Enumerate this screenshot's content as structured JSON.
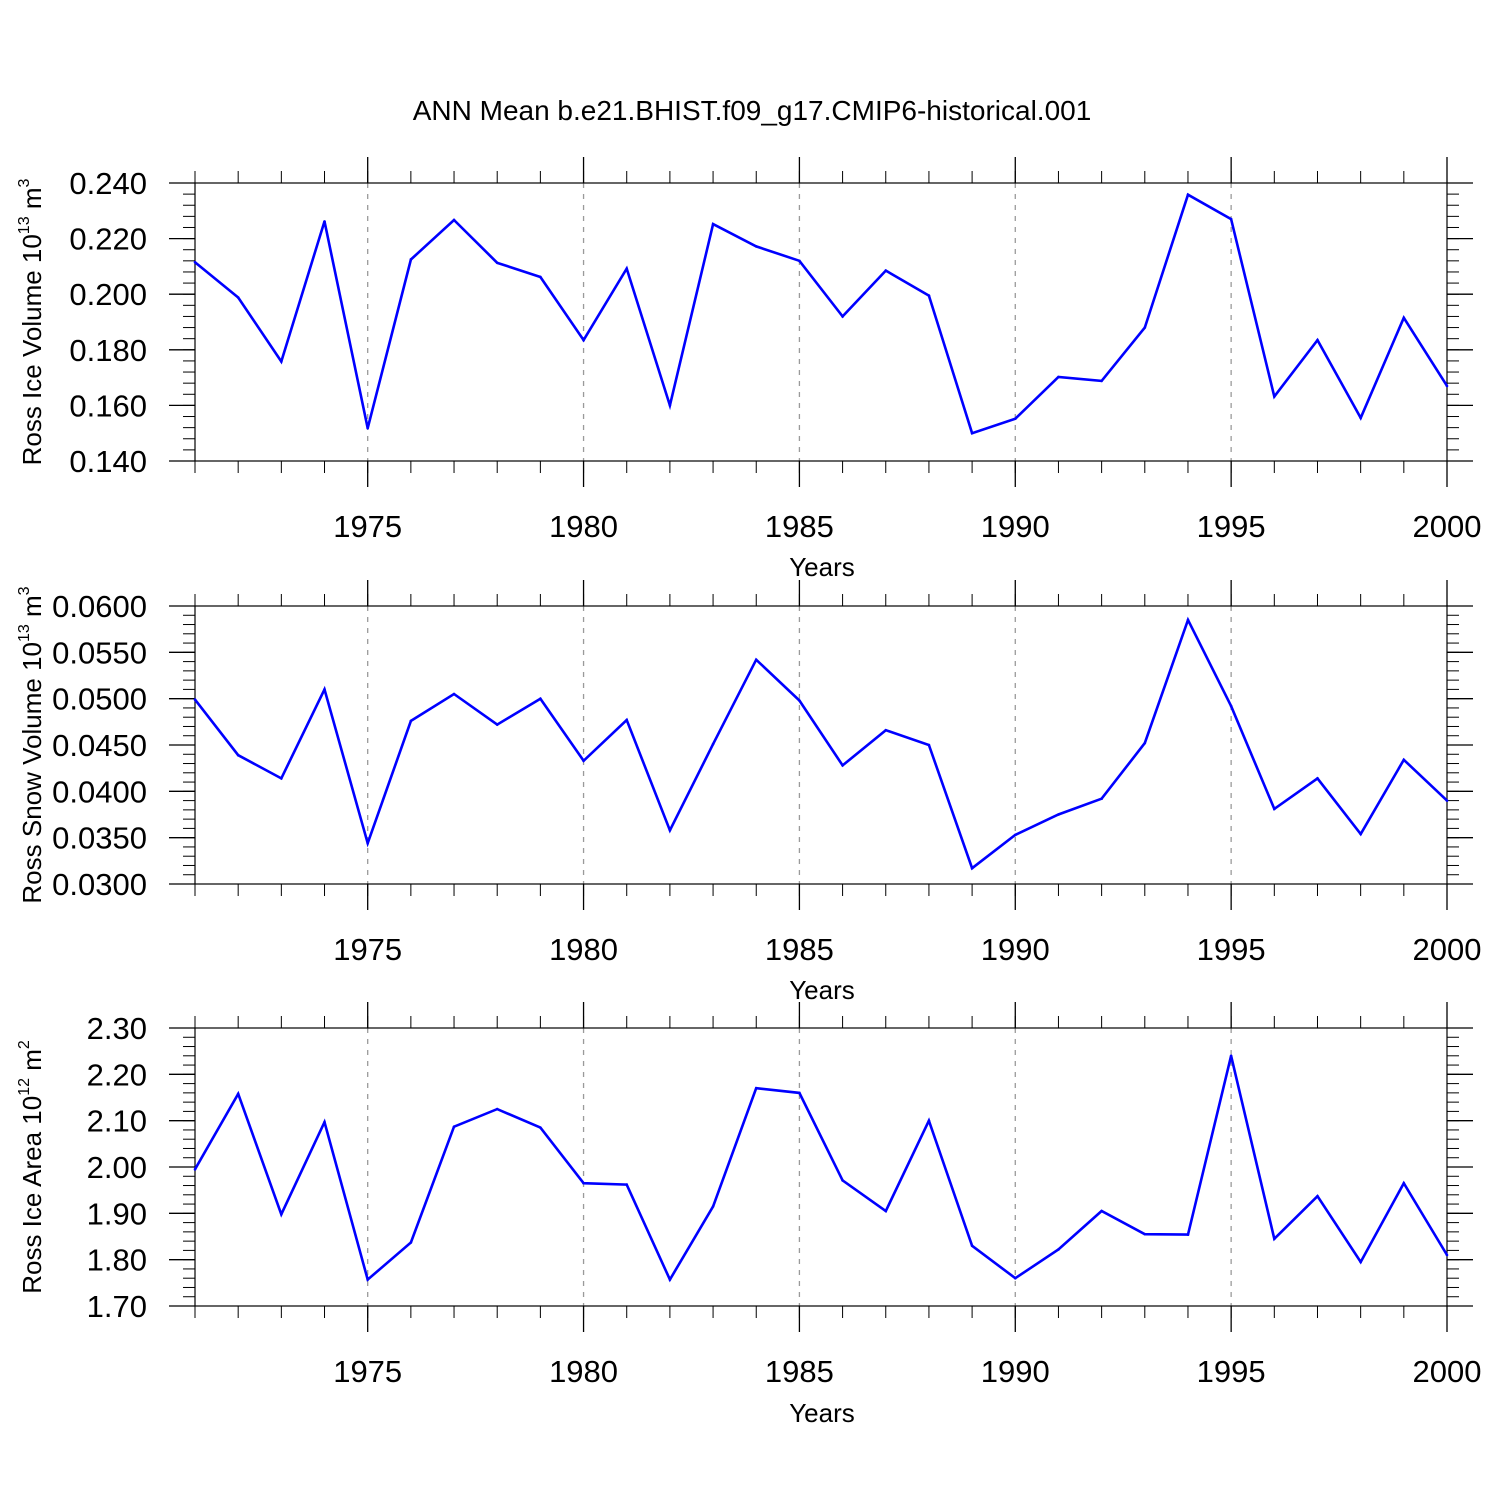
{
  "chart_data": {
    "type": "line",
    "title": "ANN Mean b.e21.BHIST.f09_g17.CMIP6-historical.001",
    "line_color": "#0000ff",
    "grid_color": "#9a9a9a",
    "x": [
      1971,
      1972,
      1973,
      1974,
      1975,
      1976,
      1977,
      1978,
      1979,
      1980,
      1981,
      1982,
      1983,
      1984,
      1985,
      1986,
      1987,
      1988,
      1989,
      1990,
      1991,
      1992,
      1993,
      1994,
      1995,
      1996,
      1997,
      1998,
      1999,
      2000
    ],
    "xlim": [
      1971,
      2000
    ],
    "xticks": [
      1975,
      1980,
      1985,
      1990,
      1995,
      2000
    ],
    "xtick_labels": [
      "1975",
      "1980",
      "1985",
      "1990",
      "1995",
      "2000"
    ],
    "vertical_grid": "dashed at major x ticks",
    "panels": [
      {
        "id": "ice-volume",
        "ylabel": {
          "text": "Ross Ice Volume 10",
          "sup": "13",
          "unit": " m",
          "unit_sup": "3"
        },
        "xlabel": "Years",
        "ylim": [
          0.14,
          0.24
        ],
        "yticks": [
          0.14,
          0.16,
          0.18,
          0.2,
          0.22,
          0.24
        ],
        "ytick_labels": [
          "0.140",
          "0.160",
          "0.180",
          "0.200",
          "0.220",
          "0.240"
        ],
        "values": [
          0.2115,
          0.1988,
          0.1758,
          0.2262,
          0.1518,
          0.2125,
          0.2267,
          0.2113,
          0.2062,
          0.1835,
          0.2092,
          0.16,
          0.2252,
          0.2172,
          0.212,
          0.192,
          0.2085,
          0.1995,
          0.15,
          0.1552,
          0.1702,
          0.1688,
          0.188,
          0.2358,
          0.227,
          0.1632,
          0.1835,
          0.1555,
          0.1915,
          0.167
        ]
      },
      {
        "id": "snow-volume",
        "ylabel": {
          "text": "Ross Snow Volume 10",
          "sup": "13",
          "unit": " m",
          "unit_sup": "3"
        },
        "xlabel": "Years",
        "ylim": [
          0.03,
          0.06
        ],
        "yticks": [
          0.03,
          0.035,
          0.04,
          0.045,
          0.05,
          0.055,
          0.06
        ],
        "ytick_labels": [
          "0.0300",
          "0.0350",
          "0.0400",
          "0.0450",
          "0.0500",
          "0.0550",
          "0.0600"
        ],
        "values": [
          0.0499,
          0.0439,
          0.0414,
          0.051,
          0.0344,
          0.0476,
          0.0505,
          0.0472,
          0.05,
          0.0433,
          0.0477,
          0.0358,
          0.0451,
          0.0542,
          0.0498,
          0.0428,
          0.0466,
          0.045,
          0.0317,
          0.0353,
          0.0375,
          0.0392,
          0.0452,
          0.0585,
          0.0492,
          0.0381,
          0.0414,
          0.0354,
          0.0434,
          0.039
        ]
      },
      {
        "id": "ice-area",
        "ylabel": {
          "text": "Ross Ice Area 10",
          "sup": "12",
          "unit": " m",
          "unit_sup": "2"
        },
        "xlabel": "Years",
        "ylim": [
          1.7,
          2.3
        ],
        "yticks": [
          1.7,
          1.8,
          1.9,
          2.0,
          2.1,
          2.2,
          2.3
        ],
        "ytick_labels": [
          "1.70",
          "1.80",
          "1.90",
          "2.00",
          "2.10",
          "2.20",
          "2.30"
        ],
        "values": [
          1.995,
          2.158,
          1.898,
          2.097,
          1.757,
          1.837,
          2.087,
          2.125,
          2.085,
          1.965,
          1.962,
          1.757,
          1.915,
          2.17,
          2.16,
          1.971,
          1.905,
          2.1,
          1.83,
          1.76,
          1.822,
          1.905,
          1.855,
          1.854,
          2.24,
          1.845,
          1.937,
          1.795,
          1.965,
          1.81
        ]
      }
    ]
  }
}
